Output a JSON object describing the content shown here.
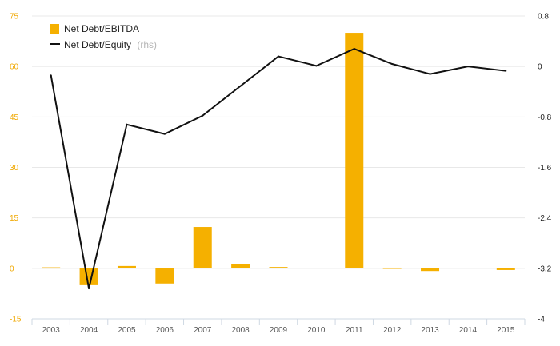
{
  "chart_data": {
    "type": "bar+line",
    "categories": [
      "2003",
      "2004",
      "2005",
      "2006",
      "2007",
      "2008",
      "2009",
      "2010",
      "2011",
      "2012",
      "2013",
      "2014",
      "2015"
    ],
    "series": [
      {
        "name": "Net Debt/EBITDA",
        "axis": "left",
        "kind": "bar",
        "color": "#f5b000",
        "values": [
          0.3,
          -5.0,
          0.7,
          -4.5,
          12.3,
          1.2,
          0.4,
          0,
          70.0,
          0.2,
          -0.8,
          0,
          -0.5
        ]
      },
      {
        "name": "Net Debt/Equity",
        "name_suffix": "(rhs)",
        "axis": "right",
        "kind": "line",
        "color": "#111111",
        "values": [
          -0.14,
          -3.52,
          -0.92,
          -1.07,
          -0.78,
          -0.31,
          0.16,
          0.01,
          0.28,
          0.04,
          -0.12,
          0.0,
          -0.07
        ]
      }
    ],
    "y_left": {
      "min": -15,
      "max": 75,
      "ticks": [
        "75",
        "60",
        "45",
        "30",
        "15",
        "0",
        "-15"
      ],
      "color": "#f0a800"
    },
    "y_right": {
      "min": -4,
      "max": 0.8,
      "ticks": [
        "0.8",
        "0",
        "-0.8",
        "-1.6",
        "-2.4",
        "-3.2",
        "-4"
      ],
      "color": "#222222"
    },
    "grid": true,
    "legend_position": "top-left"
  }
}
